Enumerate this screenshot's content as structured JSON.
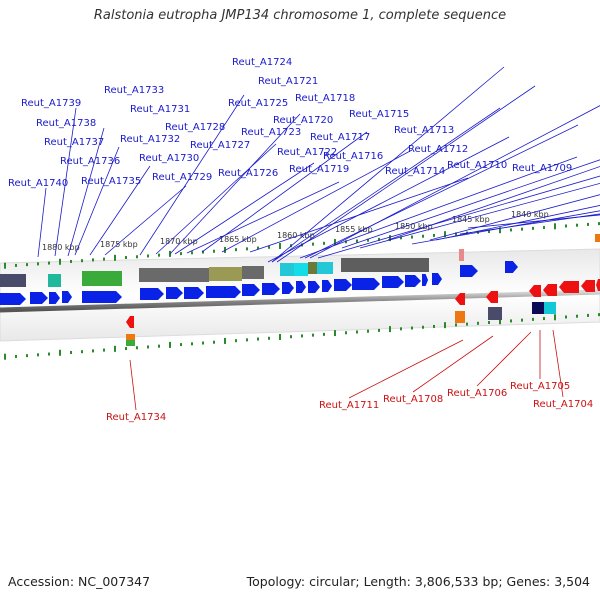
{
  "title": "Ralstonia eutropha JMP134 chromosome 1, complete sequence",
  "footer": {
    "accession": "Accession: NC_007347",
    "topology": "Topology: circular; Length: 3,806,533 bp; Genes: 3,504"
  },
  "kbp_labels": [
    "1880 kbp",
    "1875 kbp",
    "1870 kbp",
    "1865 kbp",
    "1860 kbp",
    "1855 kbp",
    "1850 kbp",
    "1845 kbp",
    "1840 kbp"
  ],
  "genes_top": [
    "Reut_A1724",
    "Reut_A1721",
    "Reut_A1718",
    "Reut_A1725",
    "Reut_A1720",
    "Reut_A1715",
    "Reut_A1739",
    "Reut_A1733",
    "Reut_A1731",
    "Reut_A1738",
    "Reut_A1728",
    "Reut_A1723",
    "Reut_A1713",
    "Reut_A1737",
    "Reut_A1732",
    "Reut_A1727",
    "Reut_A1717",
    "Reut_A1712",
    "Reut_A1730",
    "Reut_A1722",
    "Reut_A1716",
    "Reut_A1736",
    "Reut_A1719",
    "Reut_A1710",
    "Reut_A1709",
    "Reut_A1729",
    "Reut_A1714",
    "Reut_A1726",
    "Reut_A1740",
    "Reut_A1735"
  ],
  "genes_bottom": [
    "Reut_A1734",
    "Reut_A1711",
    "Reut_A1708",
    "Reut_A1706",
    "Reut_A1705",
    "Reut_A1704"
  ],
  "colors": {
    "forward_label": "#1a1acc",
    "reverse_label": "#cc1111",
    "forward_gene": "#0a22e6",
    "reverse_gene": "#ee1111",
    "tick": "#2a8a2a"
  }
}
